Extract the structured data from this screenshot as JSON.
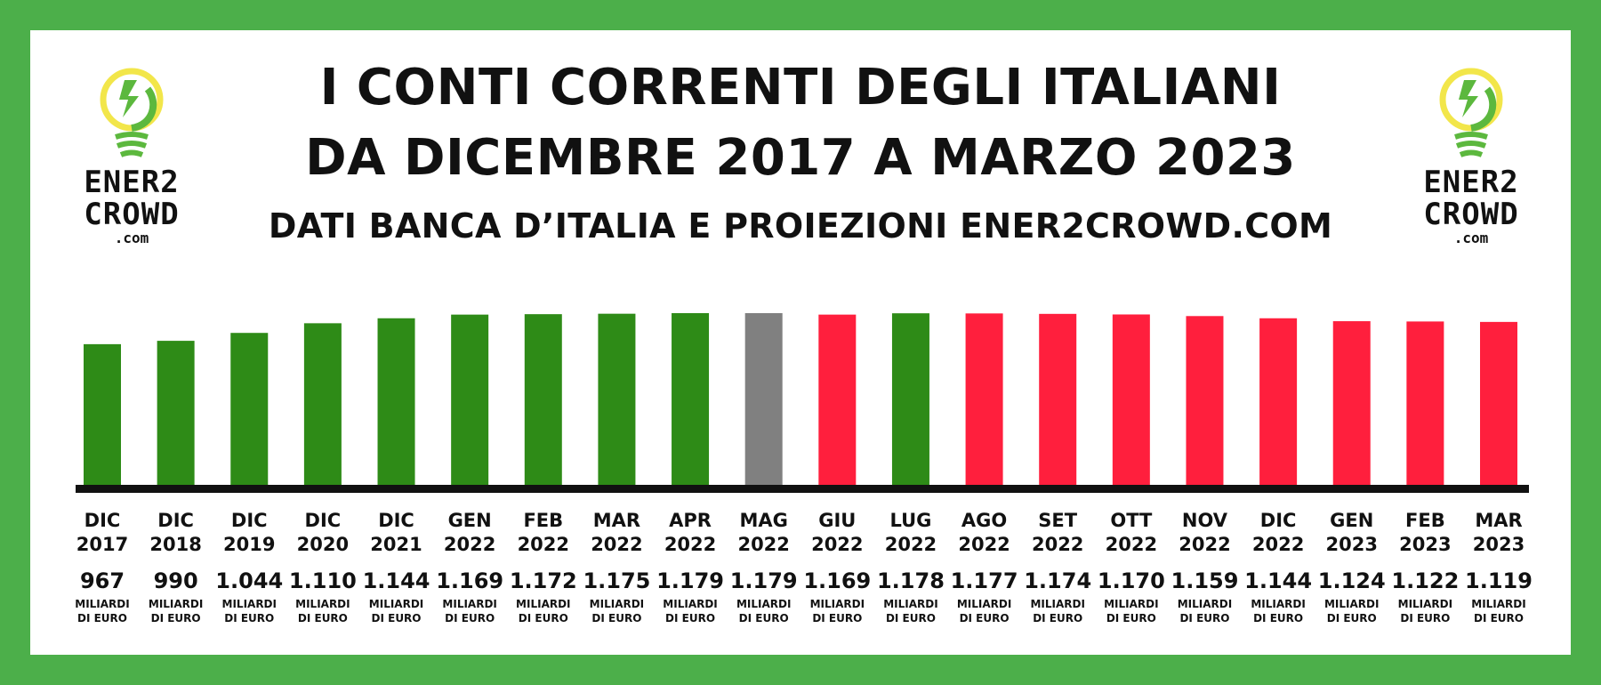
{
  "header": {
    "title_line1": "I CONTI CORRENTI DEGLI ITALIANI",
    "title_line2": "DA DICEMBRE 2017 A MARZO 2023",
    "subtitle": "DATI BANCA D’ITALIA E PROIEZIONI ENER2CROWD.COM"
  },
  "logo": {
    "line1": "ENER2",
    "line2": "CROWD",
    "line3": ".com"
  },
  "colors": {
    "frame": "#4caf4a",
    "green": "#2e8b17",
    "red": "#ff1f3d",
    "gray": "#808080",
    "baseline": "#111111"
  },
  "chart_data": {
    "type": "bar",
    "title": "I CONTI CORRENTI DEGLI ITALIANI DA DICEMBRE 2017 A MARZO 2023",
    "subtitle": "DATI BANCA D’ITALIA E PROIEZIONI ENER2CROWD.COM",
    "unit_line1": "MILIARDI",
    "unit_line2": "DI EURO",
    "categories": [
      [
        "DIC",
        "2017"
      ],
      [
        "DIC",
        "2018"
      ],
      [
        "DIC",
        "2019"
      ],
      [
        "DIC",
        "2020"
      ],
      [
        "DIC",
        "2021"
      ],
      [
        "GEN",
        "2022"
      ],
      [
        "FEB",
        "2022"
      ],
      [
        "MAR",
        "2022"
      ],
      [
        "APR",
        "2022"
      ],
      [
        "MAG",
        "2022"
      ],
      [
        "GIU",
        "2022"
      ],
      [
        "LUG",
        "2022"
      ],
      [
        "AGO",
        "2022"
      ],
      [
        "SET",
        "2022"
      ],
      [
        "OTT",
        "2022"
      ],
      [
        "NOV",
        "2022"
      ],
      [
        "DIC",
        "2022"
      ],
      [
        "GEN",
        "2023"
      ],
      [
        "FEB",
        "2023"
      ],
      [
        "MAR",
        "2023"
      ]
    ],
    "values": [
      967,
      990,
      1044,
      1110,
      1144,
      1169,
      1172,
      1175,
      1179,
      1179,
      1169,
      1178,
      1177,
      1174,
      1170,
      1159,
      1144,
      1124,
      1122,
      1119
    ],
    "value_labels": [
      "967",
      "990",
      "1.044",
      "1.110",
      "1.144",
      "1.169",
      "1.172",
      "1.175",
      "1.179",
      "1.179",
      "1.169",
      "1.178",
      "1.177",
      "1.174",
      "1.170",
      "1.159",
      "1.144",
      "1.124",
      "1.122",
      "1.119"
    ],
    "bar_colors": [
      "green",
      "green",
      "green",
      "green",
      "green",
      "green",
      "green",
      "green",
      "green",
      "gray",
      "red",
      "green",
      "red",
      "red",
      "red",
      "red",
      "red",
      "red",
      "red",
      "red"
    ]
  }
}
